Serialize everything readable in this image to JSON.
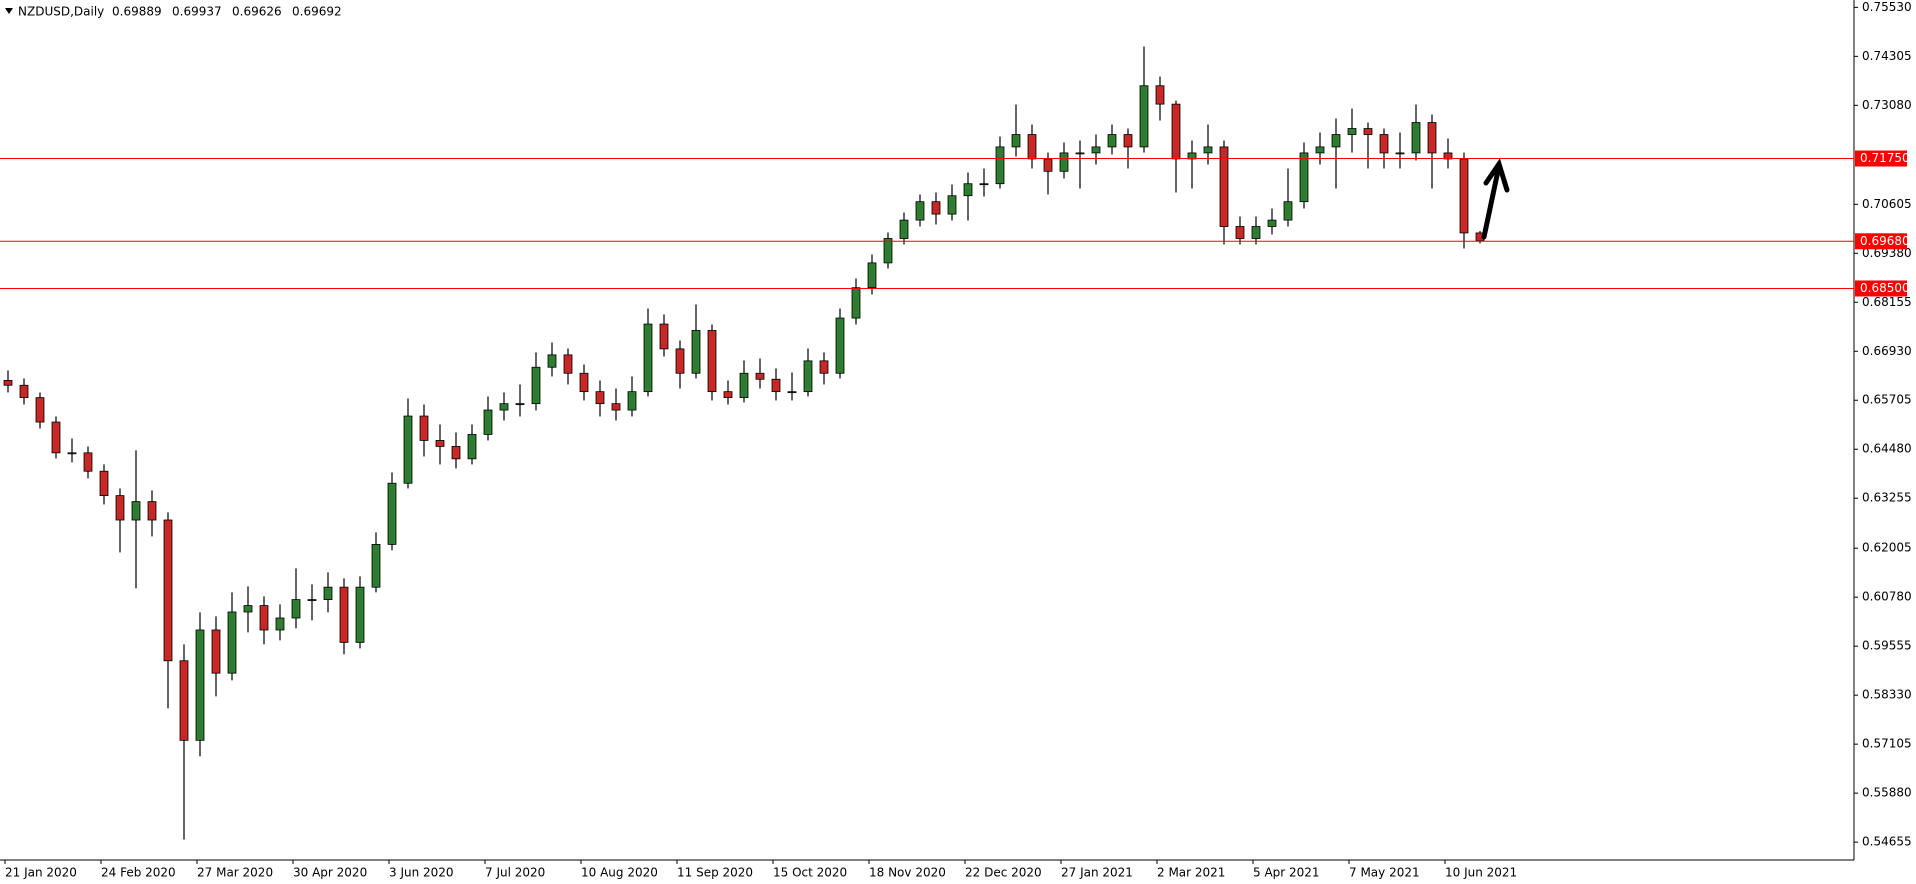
{
  "chart_data": {
    "type": "candlestick",
    "title": "NZDUSD,Daily",
    "up_color": "#2e7d32",
    "down_color": "#c62828",
    "wick_color": "#000000",
    "grid": false,
    "ylim": [
      0.54208,
      0.75714
    ],
    "yticks": [
      {
        "value": 0.7553,
        "label": "0.75530"
      },
      {
        "value": 0.74305,
        "label": "0.74305"
      },
      {
        "value": 0.7308,
        "label": "0.73080"
      },
      {
        "value": 0.70605,
        "label": "0.70605"
      },
      {
        "value": 0.6938,
        "label": "0.69380"
      },
      {
        "value": 0.68155,
        "label": "0.68155"
      },
      {
        "value": 0.6693,
        "label": "0.66930"
      },
      {
        "value": 0.65705,
        "label": "0.65705"
      },
      {
        "value": 0.6448,
        "label": "0.64480"
      },
      {
        "value": 0.63255,
        "label": "0.63255"
      },
      {
        "value": 0.62005,
        "label": "0.62005"
      },
      {
        "value": 0.6078,
        "label": "0.60780"
      },
      {
        "value": 0.59555,
        "label": "0.59555"
      },
      {
        "value": 0.5833,
        "label": "0.58330"
      },
      {
        "value": 0.57105,
        "label": "0.57105"
      },
      {
        "value": 0.5588,
        "label": "0.55880"
      },
      {
        "value": 0.54655,
        "label": "0.54655"
      }
    ],
    "hlines": [
      {
        "value": 0.7175,
        "label": "0.71750",
        "color": "#ff0000"
      },
      {
        "value": 0.6968,
        "label": "0.69680",
        "color": "#ff0000"
      },
      {
        "value": 0.685,
        "label": "0.68500",
        "color": "#ff0000"
      }
    ],
    "categories": [
      "21 Jan 2020",
      null,
      null,
      null,
      null,
      null,
      "24 Feb 2020",
      null,
      null,
      null,
      null,
      null,
      "27 Mar 2020",
      null,
      null,
      null,
      null,
      null,
      "30 Apr 2020",
      null,
      null,
      null,
      null,
      null,
      "3 Jun 2020",
      null,
      null,
      null,
      null,
      null,
      "7 Jul 2020",
      null,
      null,
      null,
      null,
      null,
      "10 Aug 2020",
      null,
      null,
      null,
      null,
      null,
      "11 Sep 2020",
      null,
      null,
      null,
      null,
      null,
      "15 Oct 2020",
      null,
      null,
      null,
      null,
      null,
      "18 Nov 2020",
      null,
      null,
      null,
      null,
      null,
      "22 Dec 2020",
      null,
      null,
      null,
      null,
      null,
      "27 Jan 2021",
      null,
      null,
      null,
      null,
      null,
      "2 Mar 2021",
      null,
      null,
      null,
      null,
      null,
      "5 Apr 2021",
      null,
      null,
      null,
      null,
      null,
      "7 May 2021",
      null,
      null,
      null,
      null,
      null,
      "10 Jun 2021",
      null,
      null
    ],
    "open": [
      0.662,
      0.6608,
      0.6577,
      0.6516,
      0.6439,
      0.6439,
      0.6393,
      0.6332,
      0.6271,
      0.6317,
      0.6271,
      0.5919,
      0.572,
      0.5996,
      0.5888,
      0.6041,
      0.6057,
      0.5996,
      0.6026,
      0.6072,
      0.6072,
      0.6103,
      0.5965,
      0.6103,
      0.621,
      0.6363,
      0.6531,
      0.647,
      0.6455,
      0.6424,
      0.6485,
      0.6546,
      0.6562,
      0.6562,
      0.6653,
      0.6684,
      0.6638,
      0.6592,
      0.6562,
      0.6546,
      0.6592,
      0.6761,
      0.6699,
      0.6638,
      0.6745,
      0.6592,
      0.6577,
      0.6638,
      0.6623,
      0.6592,
      0.6592,
      0.6669,
      0.6638,
      0.6776,
      0.6852,
      0.6914,
      0.6975,
      0.7021,
      0.7067,
      0.7036,
      0.7082,
      0.7112,
      0.7112,
      0.7204,
      0.7235,
      0.7174,
      0.7143,
      0.7189,
      0.7189,
      0.7204,
      0.7235,
      0.7204,
      0.7357,
      0.7311,
      0.7174,
      0.7189,
      0.7204,
      0.7005,
      0.6975,
      0.7005,
      0.7021,
      0.7067,
      0.7189,
      0.7204,
      0.7235,
      0.725,
      0.7235,
      0.7189,
      0.7189,
      0.7265,
      0.7189,
      0.7174,
      0.69889
    ],
    "high": [
      0.6645,
      0.6625,
      0.659,
      0.653,
      0.6475,
      0.6455,
      0.641,
      0.635,
      0.6445,
      0.6345,
      0.629,
      0.596,
      0.604,
      0.603,
      0.609,
      0.6105,
      0.608,
      0.606,
      0.615,
      0.611,
      0.614,
      0.6125,
      0.613,
      0.624,
      0.639,
      0.6575,
      0.656,
      0.651,
      0.649,
      0.651,
      0.658,
      0.659,
      0.661,
      0.669,
      0.6715,
      0.67,
      0.666,
      0.662,
      0.66,
      0.663,
      0.68,
      0.6785,
      0.672,
      0.681,
      0.676,
      0.662,
      0.667,
      0.6675,
      0.665,
      0.664,
      0.67,
      0.669,
      0.68,
      0.6875,
      0.6935,
      0.699,
      0.704,
      0.7085,
      0.709,
      0.711,
      0.714,
      0.715,
      0.723,
      0.731,
      0.726,
      0.719,
      0.7215,
      0.722,
      0.7235,
      0.726,
      0.725,
      0.7455,
      0.738,
      0.732,
      0.722,
      0.726,
      0.722,
      0.703,
      0.703,
      0.705,
      0.715,
      0.7215,
      0.724,
      0.7275,
      0.73,
      0.7265,
      0.725,
      0.724,
      0.731,
      0.7285,
      0.7225,
      0.719,
      0.69937
    ],
    "low": [
      0.659,
      0.656,
      0.65,
      0.6425,
      0.6415,
      0.6375,
      0.631,
      0.619,
      0.61,
      0.623,
      0.58,
      0.5472,
      0.568,
      0.583,
      0.587,
      0.599,
      0.596,
      0.597,
      0.6,
      0.602,
      0.604,
      0.5935,
      0.595,
      0.609,
      0.6195,
      0.635,
      0.643,
      0.641,
      0.64,
      0.641,
      0.647,
      0.652,
      0.653,
      0.6545,
      0.663,
      0.661,
      0.657,
      0.653,
      0.652,
      0.653,
      0.658,
      0.668,
      0.66,
      0.6625,
      0.657,
      0.656,
      0.6565,
      0.66,
      0.657,
      0.657,
      0.658,
      0.661,
      0.6625,
      0.676,
      0.6835,
      0.69,
      0.696,
      0.7005,
      0.701,
      0.702,
      0.702,
      0.708,
      0.71,
      0.718,
      0.715,
      0.7085,
      0.7125,
      0.71,
      0.716,
      0.7185,
      0.715,
      0.719,
      0.727,
      0.709,
      0.71,
      0.716,
      0.696,
      0.696,
      0.696,
      0.6985,
      0.7005,
      0.705,
      0.716,
      0.71,
      0.719,
      0.715,
      0.715,
      0.715,
      0.717,
      0.71,
      0.715,
      0.695,
      0.69626
    ],
    "close": [
      0.6608,
      0.6577,
      0.6516,
      0.6439,
      0.6439,
      0.6393,
      0.6332,
      0.6271,
      0.6317,
      0.6271,
      0.5919,
      0.572,
      0.5996,
      0.5888,
      0.6041,
      0.6057,
      0.5996,
      0.6026,
      0.6072,
      0.6072,
      0.6103,
      0.5965,
      0.6103,
      0.621,
      0.6363,
      0.6531,
      0.647,
      0.6455,
      0.6424,
      0.6485,
      0.6546,
      0.6562,
      0.6562,
      0.6653,
      0.6684,
      0.6638,
      0.6592,
      0.6562,
      0.6546,
      0.6592,
      0.6761,
      0.6699,
      0.6638,
      0.6745,
      0.6592,
      0.6577,
      0.6638,
      0.6623,
      0.6592,
      0.6592,
      0.6669,
      0.6638,
      0.6776,
      0.6852,
      0.6914,
      0.6975,
      0.7021,
      0.7067,
      0.7036,
      0.7082,
      0.7112,
      0.7112,
      0.7204,
      0.7235,
      0.7174,
      0.7143,
      0.7189,
      0.7189,
      0.7204,
      0.7235,
      0.7204,
      0.7357,
      0.7311,
      0.7174,
      0.7189,
      0.7204,
      0.7005,
      0.6975,
      0.7005,
      0.7021,
      0.7067,
      0.7189,
      0.7204,
      0.7235,
      0.725,
      0.7235,
      0.7189,
      0.7189,
      0.7265,
      0.7189,
      0.7174,
      0.6989,
      0.69692
    ]
  }
}
